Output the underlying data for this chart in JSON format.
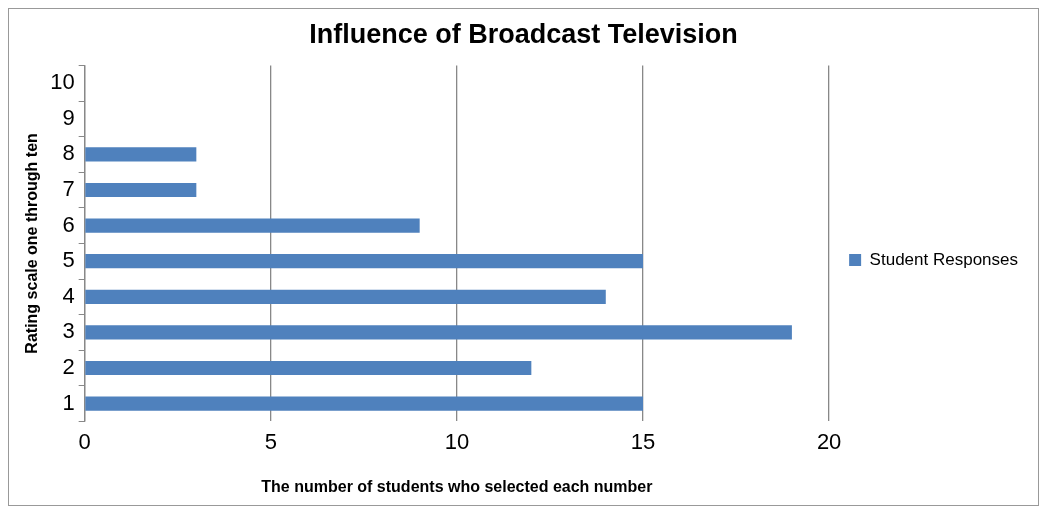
{
  "chart_data": {
    "type": "bar",
    "orientation": "horizontal",
    "title": "Influence of Broadcast Television",
    "xlabel": "The number of students who selected each number",
    "ylabel": "Rating scale one through ten",
    "categories": [
      "10",
      "9",
      "8",
      "7",
      "6",
      "5",
      "4",
      "3",
      "2",
      "1"
    ],
    "series": [
      {
        "name": "Student Responses",
        "color": "#4f81bd",
        "values": [
          0,
          0,
          3,
          3,
          9,
          15,
          14,
          19,
          12,
          15
        ]
      }
    ],
    "xlim": [
      0,
      20
    ],
    "xticks": [
      0,
      5,
      10,
      15,
      20
    ],
    "grid": "x",
    "legend": "right"
  }
}
